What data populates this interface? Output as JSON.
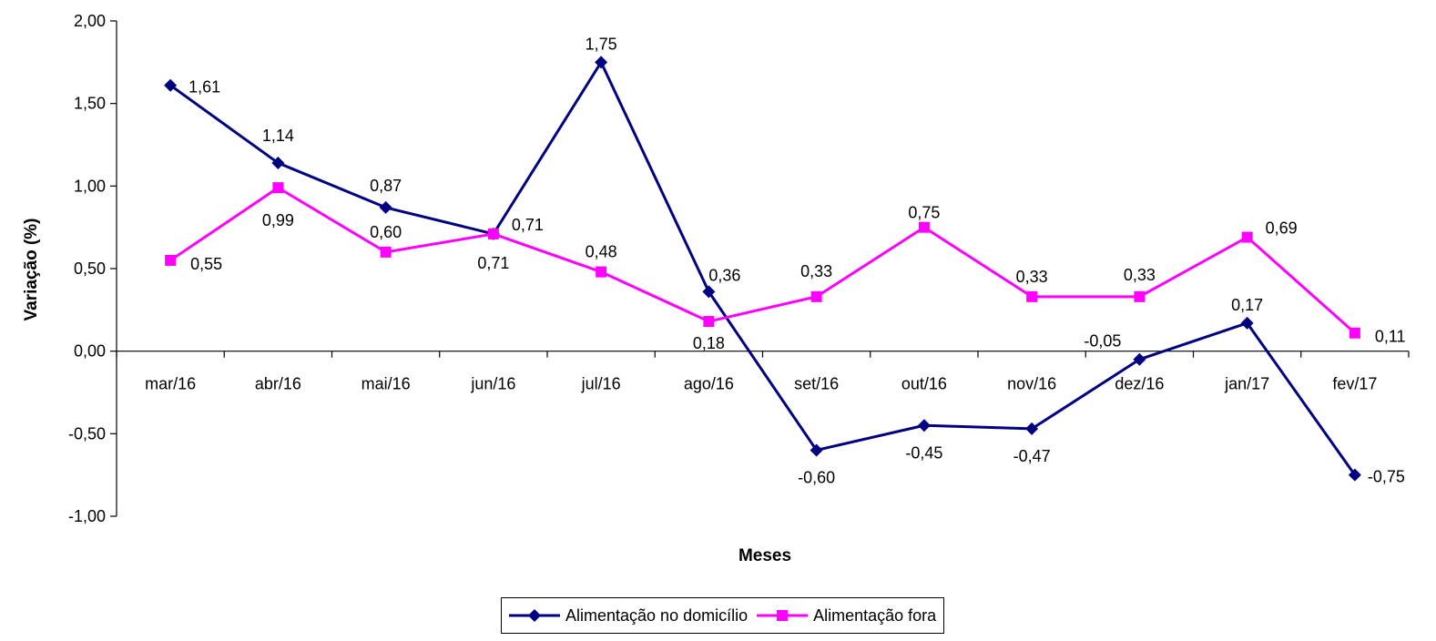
{
  "chart_data": {
    "type": "line",
    "categories": [
      "mar/16",
      "abr/16",
      "mai/16",
      "jun/16",
      "jul/16",
      "ago/16",
      "set/16",
      "out/16",
      "nov/16",
      "dez/16",
      "jan/17",
      "fev/17"
    ],
    "series": [
      {
        "name": "Alimentação no domicílio",
        "color": "#000080",
        "marker": "diamond",
        "values": [
          1.61,
          1.14,
          0.87,
          0.71,
          1.75,
          0.36,
          -0.6,
          -0.45,
          -0.47,
          -0.05,
          0.17,
          -0.75
        ],
        "labels": [
          "1,61",
          "1,14",
          "0,87",
          "0,71",
          "1,75",
          "0,36",
          "-0,60",
          "-0,45",
          "-0,47",
          "-0,05",
          "0,17",
          "-0,75"
        ]
      },
      {
        "name": "Alimentação fora",
        "color": "#FF00FF",
        "marker": "square",
        "values": [
          0.55,
          0.99,
          0.6,
          0.71,
          0.48,
          0.18,
          0.33,
          0.75,
          0.33,
          0.33,
          0.69,
          0.11
        ],
        "labels": [
          "0,55",
          "0,99",
          "0,60",
          "0,71",
          "0,48",
          "0,18",
          "0,33",
          "0,75",
          "0,33",
          "0,33",
          "0,69",
          "0,11"
        ]
      }
    ],
    "xlabel": "Meses",
    "ylabel": "Variação (%)",
    "ylim": [
      -1.0,
      2.0
    ],
    "yticks": [
      2.0,
      1.5,
      1.0,
      0.5,
      0.0,
      -0.5,
      -1.0
    ],
    "ytick_labels": [
      "2,00",
      "1,50",
      "1,00",
      "0,50",
      "0,00",
      "-0,50",
      "-1,00"
    ],
    "grid": false,
    "legend_position": "bottom"
  }
}
